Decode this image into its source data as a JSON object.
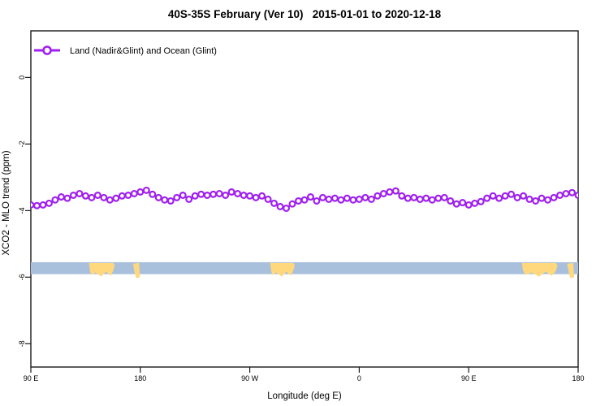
{
  "title": "40S-35S February (Ver 10)   2015-01-01 to 2020-12-18",
  "legend": {
    "label": "Land (Nadir&Glint) and Ocean (Glint)",
    "series_color": "#A020F0",
    "marker": "open-circle"
  },
  "axes": {
    "x": {
      "label": "Longitude (deg E)",
      "tick_labels": [
        "90 E",
        "180",
        "90 W",
        "0",
        "90 E",
        "180"
      ],
      "tick_degrees": [
        90,
        180,
        270,
        360,
        450,
        540
      ]
    },
    "y": {
      "label": "XCO2 - MLO trend (ppm)",
      "tick_labels": [
        "0",
        "-2",
        "-4",
        "-6",
        "-8"
      ],
      "tick_values": [
        0,
        -2,
        -4,
        -6,
        -8
      ]
    }
  },
  "chart_data": {
    "type": "line",
    "title": "40S-35S February (Ver 10)   2015-01-01 to 2020-12-18",
    "xlabel": "Longitude (deg E)",
    "ylabel": "XCO2 - MLO trend (ppm)",
    "xlim": [
      90,
      540
    ],
    "ylim": [
      -8.7,
      1.4
    ],
    "grid": false,
    "legend_position": "top-left",
    "series": [
      {
        "name": "Land (Nadir&Glint) and Ocean (Glint)",
        "color": "#A020F0",
        "marker": "open-circle",
        "x": [
          90,
          95,
          100,
          105,
          110,
          115,
          120,
          125,
          130,
          135,
          140,
          145,
          150,
          155,
          160,
          165,
          170,
          175,
          180,
          185,
          190,
          195,
          200,
          205,
          210,
          215,
          220,
          225,
          230,
          235,
          240,
          245,
          250,
          255,
          260,
          265,
          270,
          275,
          280,
          285,
          290,
          295,
          300,
          305,
          310,
          315,
          320,
          325,
          330,
          335,
          340,
          345,
          350,
          355,
          360,
          365,
          370,
          375,
          380,
          385,
          390,
          395,
          400,
          405,
          410,
          415,
          420,
          425,
          430,
          435,
          440,
          445,
          450,
          455,
          460,
          465,
          470,
          475,
          480,
          485,
          490,
          495,
          500,
          505,
          510,
          515,
          520,
          525,
          530,
          535,
          540
        ],
        "y": [
          -3.83,
          -3.85,
          -3.83,
          -3.78,
          -3.68,
          -3.59,
          -3.63,
          -3.54,
          -3.49,
          -3.56,
          -3.61,
          -3.54,
          -3.61,
          -3.68,
          -3.63,
          -3.56,
          -3.54,
          -3.49,
          -3.44,
          -3.39,
          -3.51,
          -3.61,
          -3.68,
          -3.71,
          -3.61,
          -3.54,
          -3.66,
          -3.56,
          -3.51,
          -3.54,
          -3.51,
          -3.49,
          -3.54,
          -3.44,
          -3.49,
          -3.54,
          -3.56,
          -3.61,
          -3.56,
          -3.66,
          -3.78,
          -3.88,
          -3.93,
          -3.8,
          -3.71,
          -3.68,
          -3.59,
          -3.71,
          -3.61,
          -3.66,
          -3.63,
          -3.68,
          -3.63,
          -3.68,
          -3.66,
          -3.61,
          -3.66,
          -3.56,
          -3.49,
          -3.44,
          -3.41,
          -3.56,
          -3.63,
          -3.61,
          -3.66,
          -3.63,
          -3.68,
          -3.63,
          -3.61,
          -3.71,
          -3.8,
          -3.76,
          -3.83,
          -3.78,
          -3.73,
          -3.63,
          -3.56,
          -3.63,
          -3.56,
          -3.51,
          -3.61,
          -3.56,
          -3.66,
          -3.71,
          -3.63,
          -3.68,
          -3.61,
          -3.54,
          -3.49,
          -3.46,
          -3.54
        ]
      }
    ],
    "map_band": {
      "description": "35S-40S latitude band land/ocean strip",
      "ocean_color": "#A9C0DC",
      "land_color": "#FFD87E",
      "band_center_ppm": -5.73,
      "band_halfwidth_ppm": 0.18,
      "land_patches_deg": [
        [
          136.5,
          159
        ],
        [
          174,
          179
        ],
        [
          285.5,
          307
        ],
        [
          492.5,
          523
        ],
        [
          531,
          536
        ]
      ]
    }
  }
}
